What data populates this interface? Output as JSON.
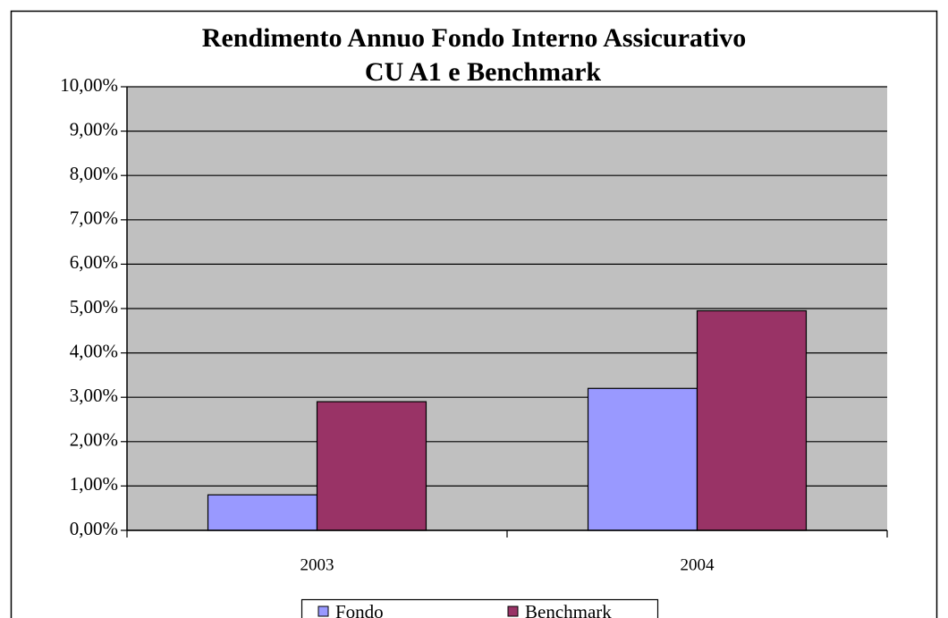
{
  "chart_data": {
    "type": "bar",
    "title": [
      "Rendimento Annuo Fondo Interno Assicurativo",
      "CU A1  e Benchmark"
    ],
    "categories": [
      "2003",
      "2004"
    ],
    "series": [
      {
        "name": "Fondo",
        "color": "#9999ff",
        "values": [
          0.8,
          3.2
        ]
      },
      {
        "name": "Benchmark",
        "color": "#993366",
        "values": [
          2.9,
          4.95
        ]
      }
    ],
    "ylim": [
      0,
      10
    ],
    "yticks": [
      {
        "value": 0,
        "label": "0,00%"
      },
      {
        "value": 1,
        "label": "1,00%"
      },
      {
        "value": 2,
        "label": "2,00%"
      },
      {
        "value": 3,
        "label": "3,00%"
      },
      {
        "value": 4,
        "label": "4,00%"
      },
      {
        "value": 5,
        "label": "5,00%"
      },
      {
        "value": 6,
        "label": "6,00%"
      },
      {
        "value": 7,
        "label": "7,00%"
      },
      {
        "value": 8,
        "label": "8,00%"
      },
      {
        "value": 9,
        "label": "9,00%"
      },
      {
        "value": 10,
        "label": "10,00%"
      }
    ],
    "grid": true,
    "legend": "bottom",
    "plot_background": "#c0c0c0"
  }
}
